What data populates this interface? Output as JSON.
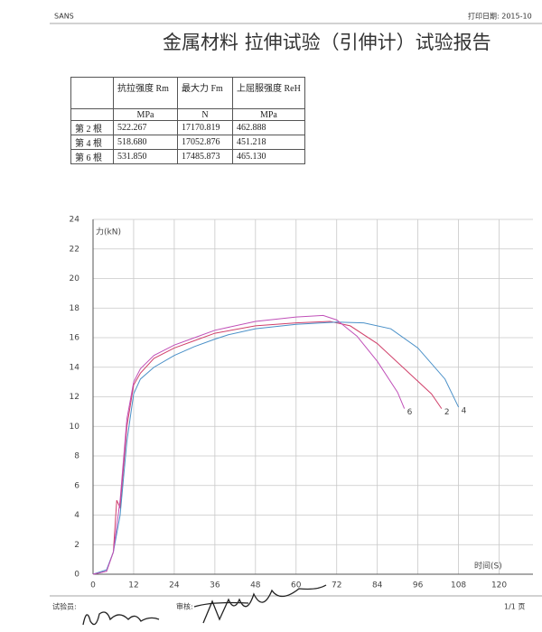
{
  "header": {
    "left": "SANS",
    "right": "打印日期: 2015-10",
    "title": "金属材料  拉伸试验（引伸计）试验报告"
  },
  "table": {
    "header": [
      "抗拉强度 Rm",
      "最大力 Fm",
      "上屈服强度 ReH"
    ],
    "units": [
      "MPa",
      "N",
      "MPa"
    ],
    "rows": [
      [
        "第 2 根",
        "522.267",
        "17170.819",
        "462.888"
      ],
      [
        "第 4 根",
        "518.680",
        "17052.876",
        "451.218"
      ],
      [
        "第 6 根",
        "531.850",
        "17485.873",
        "465.130"
      ]
    ]
  },
  "chart_data": {
    "type": "line",
    "ylabel": "力(kN)",
    "xlabel": "时间(S)",
    "xlim": [
      0,
      130
    ],
    "ylim": [
      0,
      24
    ],
    "xticks": [
      0,
      12,
      24,
      36,
      48,
      60,
      72,
      84,
      96,
      108,
      120
    ],
    "yticks": [
      0,
      2,
      4,
      6,
      8,
      10,
      12,
      14,
      16,
      18,
      20,
      22,
      24
    ],
    "grid": true,
    "series": [
      {
        "name": "2",
        "color": "#d0406a",
        "x": [
          0,
          4,
          6,
          7,
          8,
          10,
          12,
          14,
          18,
          24,
          30,
          36,
          48,
          60,
          70,
          76,
          84,
          92,
          100,
          103
        ],
        "values": [
          0,
          0.2,
          1.5,
          5,
          4.5,
          10,
          12.8,
          13.6,
          14.6,
          15.3,
          15.8,
          16.3,
          16.8,
          17.0,
          17.1,
          16.8,
          15.6,
          13.9,
          12.2,
          11.2
        ]
      },
      {
        "name": "4",
        "color": "#4a90c8",
        "x": [
          0,
          4,
          6,
          8,
          10,
          12,
          14,
          18,
          24,
          30,
          36,
          40,
          48,
          60,
          72,
          80,
          88,
          96,
          104,
          108
        ],
        "values": [
          0,
          0.3,
          1.5,
          4,
          9,
          12.2,
          13.2,
          14.0,
          14.8,
          15.4,
          15.9,
          16.2,
          16.6,
          16.9,
          17.05,
          17.0,
          16.6,
          15.3,
          13.2,
          11.3
        ]
      },
      {
        "name": "6",
        "color": "#c050b8",
        "x": [
          0,
          4,
          6,
          8,
          10,
          12,
          14,
          18,
          24,
          30,
          36,
          48,
          60,
          68,
          72,
          78,
          84,
          90,
          92
        ],
        "values": [
          0,
          0.2,
          1.5,
          5,
          10.5,
          13,
          13.9,
          14.8,
          15.5,
          16,
          16.5,
          17.1,
          17.4,
          17.5,
          17.2,
          16.1,
          14.4,
          12.3,
          11.2
        ]
      }
    ]
  },
  "footer": {
    "tester": "试验员:",
    "reviewer": "审核:",
    "page": "1/1 页"
  }
}
